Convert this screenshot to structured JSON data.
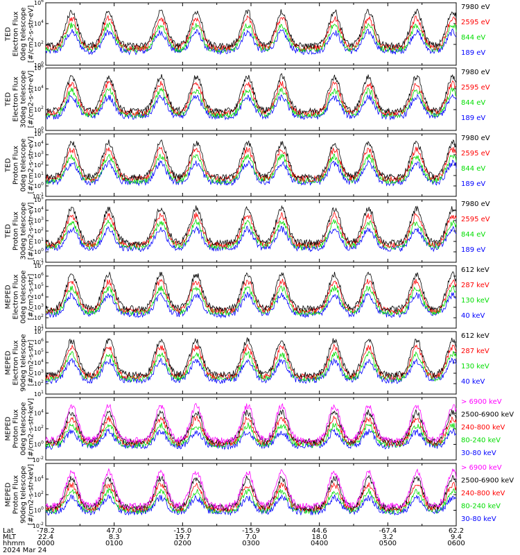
{
  "colors": {
    "blue": "#0000ff",
    "red": "#ff0000",
    "green": "#00dd00",
    "black": "#000000",
    "magenta": "#ff00ff"
  },
  "chart_data": [
    {
      "type": "line",
      "panel": "ted-electron-0deg",
      "ylabel": [
        "TED",
        "Electron Flux",
        "0deg telescope",
        "[#/cm2-s-str-eV]"
      ],
      "ylim_exp": [
        0,
        6
      ],
      "tick_exps": [
        0,
        2,
        4,
        6
      ],
      "x": [
        "0000",
        "0100",
        "0200",
        "0300",
        "0400",
        "0500",
        "0600"
      ],
      "series": [
        {
          "name": "7980 eV",
          "color": "black"
        },
        {
          "name": "2595 eV",
          "color": "red"
        },
        {
          "name": "844 eV",
          "color": "green"
        },
        {
          "name": "189 eV",
          "color": "blue"
        }
      ]
    },
    {
      "type": "line",
      "panel": "ted-electron-30deg",
      "ylabel": [
        "TED",
        "Electron Flux",
        "30deg telescope",
        "[#/cm2-s-str-eV]"
      ],
      "ylim_exp": [
        0,
        6
      ],
      "tick_exps": [
        0,
        2,
        4,
        6
      ],
      "x": [
        "0000",
        "0100",
        "0200",
        "0300",
        "0400",
        "0500",
        "0600"
      ],
      "series": [
        {
          "name": "7980 eV",
          "color": "black"
        },
        {
          "name": "2595 eV",
          "color": "red"
        },
        {
          "name": "844 eV",
          "color": "green"
        },
        {
          "name": "189 eV",
          "color": "blue"
        }
      ]
    },
    {
      "type": "line",
      "panel": "ted-proton-0deg",
      "ylabel": [
        "TED",
        "Proton Flux",
        "0deg telescope",
        "[#/cm2-s-str-eV]"
      ],
      "ylim_exp": [
        -1,
        5
      ],
      "tick_exps": [
        -1,
        0,
        1,
        2,
        3,
        4,
        5
      ],
      "x": [
        "0000",
        "0100",
        "0200",
        "0300",
        "0400",
        "0500",
        "0600"
      ],
      "series": [
        {
          "name": "7980 eV",
          "color": "black"
        },
        {
          "name": "2595 eV",
          "color": "red"
        },
        {
          "name": "844 eV",
          "color": "green"
        },
        {
          "name": "189 eV",
          "color": "blue"
        }
      ]
    },
    {
      "type": "line",
      "panel": "ted-proton-30deg",
      "ylabel": [
        "TED",
        "Proton Flux",
        "30deg telescope",
        "[#/cm2-s-str-eV]"
      ],
      "ylim_exp": [
        -1,
        5
      ],
      "tick_exps": [
        -1,
        0,
        1,
        2,
        3,
        4,
        5
      ],
      "x": [
        "0000",
        "0100",
        "0200",
        "0300",
        "0400",
        "0500",
        "0600"
      ],
      "series": [
        {
          "name": "7980 eV",
          "color": "black"
        },
        {
          "name": "2595 eV",
          "color": "red"
        },
        {
          "name": "844 eV",
          "color": "green"
        },
        {
          "name": "189 eV",
          "color": "blue"
        }
      ]
    },
    {
      "type": "line",
      "panel": "meped-electron-0deg",
      "ylabel": [
        "MEPED",
        "Electron Flux",
        "0deg telescope",
        "[#/cm2-s-str]"
      ],
      "ylim_exp": [
        1,
        7
      ],
      "tick_exps": [
        1,
        2,
        3,
        4,
        5,
        6,
        7
      ],
      "x": [
        "0000",
        "0100",
        "0200",
        "0300",
        "0400",
        "0500",
        "0600"
      ],
      "series": [
        {
          "name": "612 keV",
          "color": "black"
        },
        {
          "name": "287 keV",
          "color": "red"
        },
        {
          "name": "130 keV",
          "color": "green"
        },
        {
          "name": "40 keV",
          "color": "blue"
        }
      ]
    },
    {
      "type": "line",
      "panel": "meped-electron-90deg",
      "ylabel": [
        "MEPED",
        "Electron Flux",
        "90deg telescope",
        "[#/cm2-s-str]"
      ],
      "ylim_exp": [
        1,
        7
      ],
      "tick_exps": [
        1,
        2,
        3,
        4,
        5,
        6,
        7
      ],
      "x": [
        "0000",
        "0100",
        "0200",
        "0300",
        "0400",
        "0500",
        "0600"
      ],
      "series": [
        {
          "name": "612 keV",
          "color": "black"
        },
        {
          "name": "287 keV",
          "color": "red"
        },
        {
          "name": "130 keV",
          "color": "green"
        },
        {
          "name": "40 keV",
          "color": "blue"
        }
      ]
    },
    {
      "type": "line",
      "panel": "meped-proton-0deg",
      "ylabel": [
        "MEPED",
        "Proton Flux",
        "0deg telescope",
        "[#/cm2-s-str-keV]"
      ],
      "ylim_exp": [
        -2,
        6
      ],
      "tick_exps": [
        -2,
        0,
        2,
        4
      ],
      "x": [
        "0000",
        "0100",
        "0200",
        "0300",
        "0400",
        "0500",
        "0600"
      ],
      "series": [
        {
          "name": "> 6900 keV",
          "color": "magenta"
        },
        {
          "name": "2500-6900 keV",
          "color": "black"
        },
        {
          "name": "240-800 keV",
          "color": "red"
        },
        {
          "name": "80-240 keV",
          "color": "green"
        },
        {
          "name": "30-80 keV",
          "color": "blue"
        }
      ]
    },
    {
      "type": "line",
      "panel": "meped-proton-90deg",
      "ylabel": [
        "MEPED",
        "Proton Flux",
        "90deg telescope",
        "[#/cm2-s-str-keV]"
      ],
      "ylim_exp": [
        -2,
        6
      ],
      "tick_exps": [
        -2,
        0,
        2,
        4
      ],
      "x": [
        "0000",
        "0100",
        "0200",
        "0300",
        "0400",
        "0500",
        "0600"
      ],
      "series": [
        {
          "name": "> 6900 keV",
          "color": "magenta"
        },
        {
          "name": "2500-6900 keV",
          "color": "black"
        },
        {
          "name": "240-800 keV",
          "color": "red"
        },
        {
          "name": "80-240 keV",
          "color": "green"
        },
        {
          "name": "30-80 keV",
          "color": "blue"
        }
      ]
    }
  ],
  "x_axis": {
    "row_labels": [
      "Lat",
      "MLT",
      "hhmm",
      "2024 Mar 24"
    ],
    "columns": [
      {
        "lat": "-78.2",
        "mlt": "22.4",
        "hhmm": "0000"
      },
      {
        "lat": "47.0",
        "mlt": "8.3",
        "hhmm": "0100"
      },
      {
        "lat": "-15.0",
        "mlt": "19.7",
        "hhmm": "0200"
      },
      {
        "lat": "-15.9",
        "mlt": "7.0",
        "hhmm": "0300"
      },
      {
        "lat": "44.6",
        "mlt": "18.0",
        "hhmm": "0400"
      },
      {
        "lat": "-67.4",
        "mlt": "3.2",
        "hhmm": "0500"
      },
      {
        "lat": "62.2",
        "mlt": "9.4",
        "hhmm": "0600"
      }
    ]
  }
}
